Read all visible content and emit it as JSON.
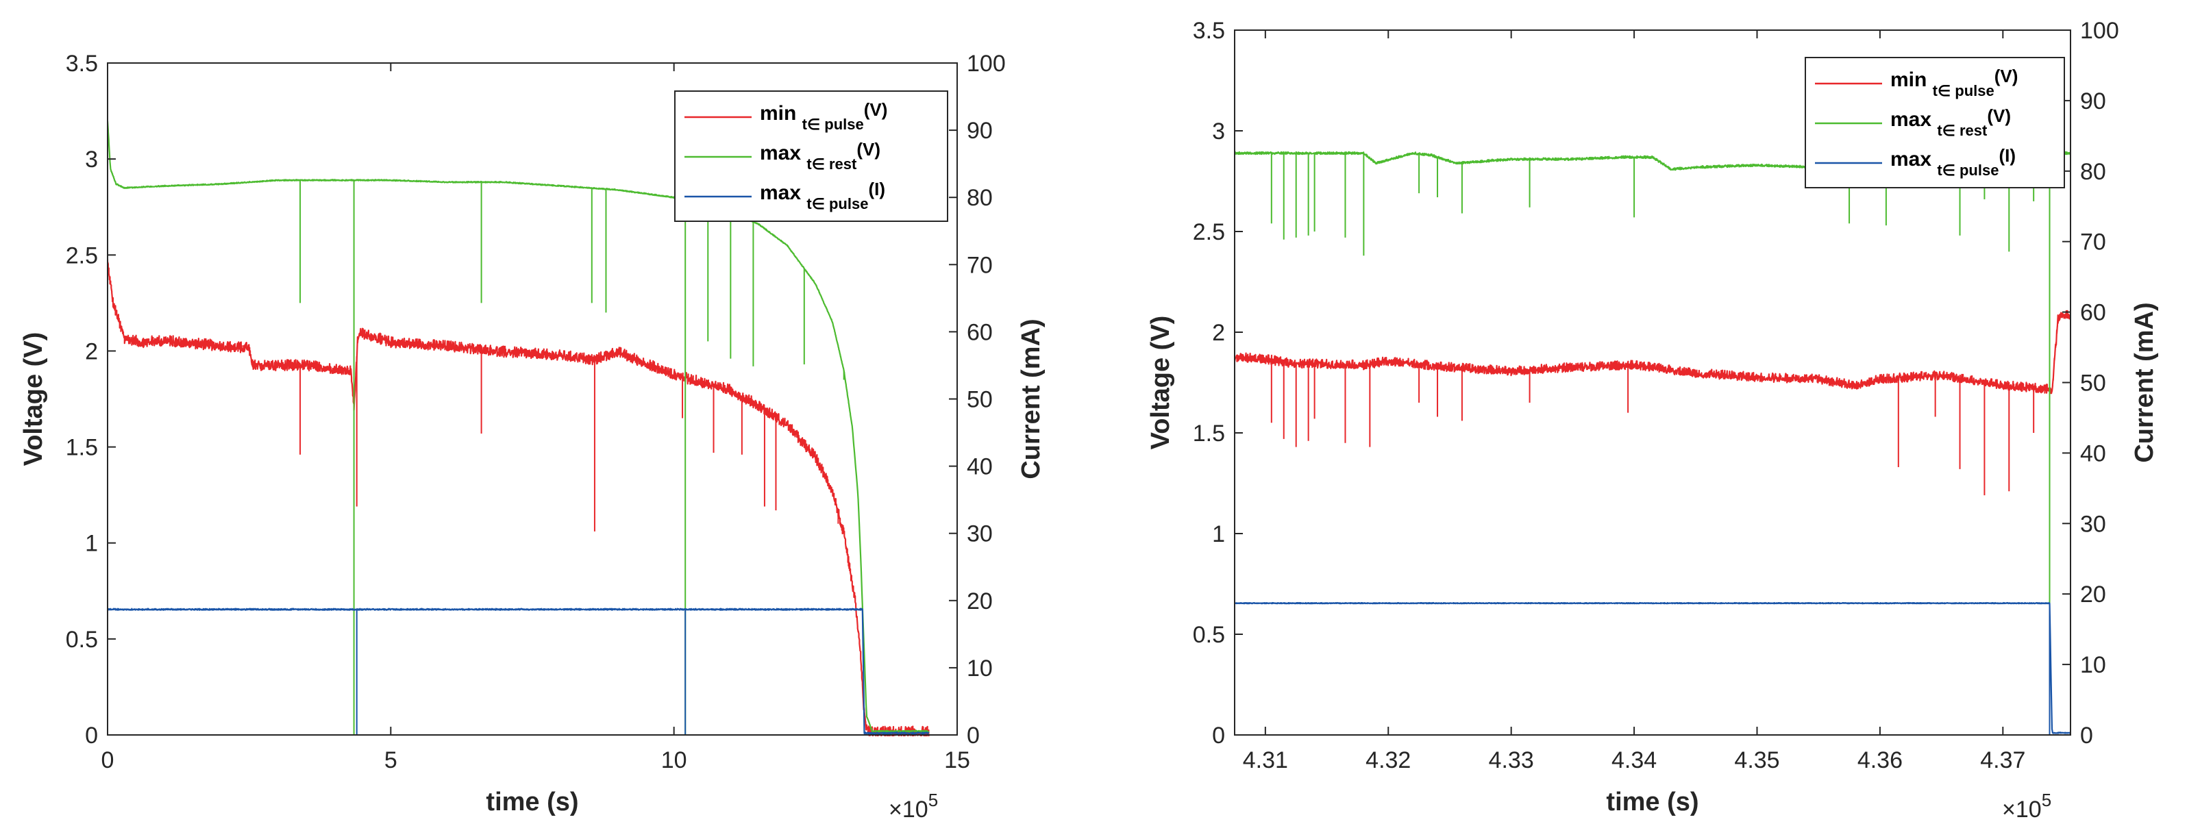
{
  "chart_data": [
    {
      "type": "line",
      "xlabel": "time (s)",
      "ylabel_left": "Voltage (V)",
      "ylabel_right": "Current (mA)",
      "x_exponent": "×10",
      "x_exponent_power": "5",
      "xlim": [
        0,
        15
      ],
      "ylim_left": [
        0,
        3.5
      ],
      "ylim_right": [
        0,
        100
      ],
      "xticks": [
        0,
        5,
        10,
        15
      ],
      "xtick_labels": [
        "0",
        "5",
        "10",
        "15"
      ],
      "yticks_left": [
        0,
        0.5,
        1,
        1.5,
        2,
        2.5,
        3,
        3.5
      ],
      "ytick_labels_left": [
        "0",
        "0.5",
        "1",
        "1.5",
        "2",
        "2.5",
        "3",
        "3.5"
      ],
      "yticks_right": [
        0,
        10,
        20,
        30,
        40,
        50,
        60,
        70,
        80,
        90,
        100
      ],
      "ytick_labels_right": [
        "0",
        "10",
        "20",
        "30",
        "40",
        "50",
        "60",
        "70",
        "80",
        "90",
        "100"
      ],
      "legend_position": "top-right",
      "legend": [
        {
          "main": "min",
          "sub": "t∈ pulse",
          "unit": "(V)",
          "color": "#e8272a"
        },
        {
          "main": "max",
          "sub": "t∈ rest",
          "unit": "(V)",
          "color": "#4dbb30"
        },
        {
          "main": "max",
          "sub": "t∈ pulse",
          "unit": "(I)",
          "color": "#1a55a8"
        }
      ],
      "series": [
        {
          "name": "min_pulse_V",
          "axis": "left",
          "color": "#e8272a",
          "x": [
            0,
            0.1,
            0.3,
            0.6,
            1.0,
            2.0,
            2.5,
            2.55,
            3.5,
            4.3,
            4.35,
            4.42,
            4.45,
            5,
            6,
            7,
            8,
            8.6,
            9,
            10,
            11,
            11.5,
            12,
            12.5,
            12.8,
            13.0,
            13.2,
            13.3,
            13.35,
            13.4,
            13.5,
            14.0,
            14.5
          ],
          "y": [
            2.47,
            2.25,
            2.07,
            2.05,
            2.06,
            2.03,
            2.02,
            1.93,
            1.93,
            1.9,
            1.7,
            2.08,
            2.1,
            2.05,
            2.03,
            2.0,
            1.98,
            1.96,
            2.0,
            1.88,
            1.8,
            1.72,
            1.62,
            1.45,
            1.28,
            1.05,
            0.7,
            0.4,
            0.15,
            0.03,
            0.02,
            0.02,
            0.02
          ],
          "noise": 0.05,
          "spikes": [
            [
              3.4,
              1.46
            ],
            [
              4.4,
              1.19
            ],
            [
              6.6,
              1.57
            ],
            [
              8.6,
              1.06
            ],
            [
              10.15,
              1.65
            ],
            [
              10.7,
              1.47
            ],
            [
              11.2,
              1.46
            ],
            [
              11.6,
              1.19
            ],
            [
              11.8,
              1.17
            ],
            [
              12.9,
              1.1
            ]
          ]
        },
        {
          "name": "max_rest_V",
          "axis": "left",
          "color": "#4dbb30",
          "x": [
            0,
            0.05,
            0.15,
            0.3,
            1.0,
            2.0,
            3.0,
            4.0,
            5.0,
            6.0,
            7.0,
            8.0,
            9.0,
            10.0,
            11.0,
            11.5,
            12.0,
            12.5,
            12.8,
            13.0,
            13.15,
            13.25,
            13.3,
            13.35,
            13.4,
            13.5,
            14.5
          ],
          "y": [
            3.2,
            2.95,
            2.87,
            2.85,
            2.86,
            2.87,
            2.89,
            2.89,
            2.89,
            2.88,
            2.88,
            2.86,
            2.84,
            2.8,
            2.73,
            2.66,
            2.55,
            2.35,
            2.15,
            1.9,
            1.6,
            1.25,
            0.9,
            0.5,
            0.1,
            0.02,
            0.02
          ],
          "noise": 0.005,
          "spikes": [
            [
              3.4,
              2.25
            ],
            [
              4.35,
              0.0
            ],
            [
              6.6,
              2.25
            ],
            [
              8.55,
              2.25
            ],
            [
              8.8,
              2.2
            ],
            [
              10.2,
              0.0
            ],
            [
              10.6,
              2.05
            ],
            [
              11.0,
              1.96
            ],
            [
              11.4,
              1.92
            ],
            [
              12.3,
              1.93
            ],
            [
              13.0,
              1.85
            ]
          ]
        },
        {
          "name": "max_pulse_I",
          "axis": "right",
          "color": "#1a55a8",
          "x": [
            0,
            13.33,
            13.36,
            14.5
          ],
          "y": [
            18.7,
            18.7,
            0.3,
            0.3
          ],
          "noise": 0.18,
          "spikes": [
            [
              4.4,
              0.0
            ],
            [
              10.2,
              0.0
            ]
          ]
        }
      ]
    },
    {
      "type": "line",
      "xlabel": "time (s)",
      "ylabel_left": "Voltage (V)",
      "ylabel_right": "Current (mA)",
      "x_exponent": "×10",
      "x_exponent_power": "5",
      "xlim": [
        4.3075,
        4.3755
      ],
      "ylim_left": [
        0,
        3.5
      ],
      "ylim_right": [
        0,
        100
      ],
      "xticks": [
        4.31,
        4.32,
        4.33,
        4.34,
        4.35,
        4.36,
        4.37
      ],
      "xtick_labels": [
        "4.31",
        "4.32",
        "4.33",
        "4.34",
        "4.35",
        "4.36",
        "4.37"
      ],
      "yticks_left": [
        0,
        0.5,
        1,
        1.5,
        2,
        2.5,
        3,
        3.5
      ],
      "ytick_labels_left": [
        "0",
        "0.5",
        "1",
        "1.5",
        "2",
        "2.5",
        "3",
        "3.5"
      ],
      "yticks_right": [
        0,
        10,
        20,
        30,
        40,
        50,
        60,
        70,
        80,
        90,
        100
      ],
      "ytick_labels_right": [
        "0",
        "10",
        "20",
        "30",
        "40",
        "50",
        "60",
        "70",
        "80",
        "90",
        "100"
      ],
      "legend_position": "top-right",
      "legend": [
        {
          "main": "min",
          "sub": "t∈ pulse",
          "unit": "(V)",
          "color": "#e8272a"
        },
        {
          "main": "max",
          "sub": "t∈ rest",
          "unit": "(V)",
          "color": "#4dbb30"
        },
        {
          "main": "max",
          "sub": "t∈ pulse",
          "unit": "(I)",
          "color": "#1a55a8"
        }
      ],
      "series": [
        {
          "name": "min_pulse_V",
          "axis": "left",
          "color": "#e8272a",
          "x": [
            4.3075,
            4.31,
            4.312,
            4.318,
            4.32,
            4.325,
            4.33,
            4.335,
            4.34,
            4.345,
            4.35,
            4.355,
            4.358,
            4.36,
            4.365,
            4.37,
            4.374,
            4.3745,
            4.3755
          ],
          "y": [
            1.88,
            1.87,
            1.85,
            1.84,
            1.86,
            1.83,
            1.81,
            1.83,
            1.84,
            1.8,
            1.78,
            1.77,
            1.74,
            1.77,
            1.79,
            1.74,
            1.72,
            2.08,
            2.09
          ],
          "noise": 0.04,
          "spikes": [
            [
              4.3105,
              1.55
            ],
            [
              4.3115,
              1.47
            ],
            [
              4.3125,
              1.43
            ],
            [
              4.3135,
              1.46
            ],
            [
              4.314,
              1.57
            ],
            [
              4.3165,
              1.45
            ],
            [
              4.3185,
              1.43
            ],
            [
              4.3225,
              1.65
            ],
            [
              4.324,
              1.58
            ],
            [
              4.326,
              1.56
            ],
            [
              4.3315,
              1.65
            ],
            [
              4.3395,
              1.6
            ],
            [
              4.3615,
              1.33
            ],
            [
              4.3645,
              1.58
            ],
            [
              4.3665,
              1.32
            ],
            [
              4.3685,
              1.19
            ],
            [
              4.3705,
              1.21
            ],
            [
              4.3725,
              1.5
            ]
          ]
        },
        {
          "name": "max_rest_V",
          "axis": "left",
          "color": "#4dbb30",
          "x": [
            4.3075,
            4.318,
            4.319,
            4.322,
            4.3235,
            4.3255,
            4.33,
            4.335,
            4.339,
            4.3415,
            4.343,
            4.345,
            4.35,
            4.355,
            4.36,
            4.365,
            4.37,
            4.3738,
            4.3742,
            4.3755
          ],
          "y": [
            2.89,
            2.89,
            2.84,
            2.89,
            2.88,
            2.84,
            2.86,
            2.86,
            2.87,
            2.87,
            2.81,
            2.82,
            2.83,
            2.82,
            2.82,
            2.82,
            2.82,
            2.82,
            2.89,
            2.89
          ],
          "noise": 0.01,
          "spikes": [
            [
              4.3105,
              2.54
            ],
            [
              4.3115,
              2.46
            ],
            [
              4.3125,
              2.47
            ],
            [
              4.3135,
              2.48
            ],
            [
              4.314,
              2.5
            ],
            [
              4.3165,
              2.47
            ],
            [
              4.318,
              2.38
            ],
            [
              4.3225,
              2.69
            ],
            [
              4.324,
              2.67
            ],
            [
              4.326,
              2.59
            ],
            [
              4.3315,
              2.62
            ],
            [
              4.34,
              2.57
            ],
            [
              4.3575,
              2.54
            ],
            [
              4.3605,
              2.53
            ],
            [
              4.3665,
              2.48
            ],
            [
              4.3685,
              2.66
            ],
            [
              4.3705,
              2.4
            ],
            [
              4.3725,
              2.65
            ],
            [
              4.3738,
              0.0
            ]
          ]
        },
        {
          "name": "max_pulse_I",
          "axis": "right",
          "color": "#1a55a8",
          "x": [
            4.3075,
            4.3738,
            4.374,
            4.3755
          ],
          "y": [
            18.7,
            18.7,
            0.3,
            0.3
          ],
          "noise": 0.1,
          "spikes": [
            [
              4.3738,
              0.0
            ]
          ]
        }
      ]
    }
  ]
}
